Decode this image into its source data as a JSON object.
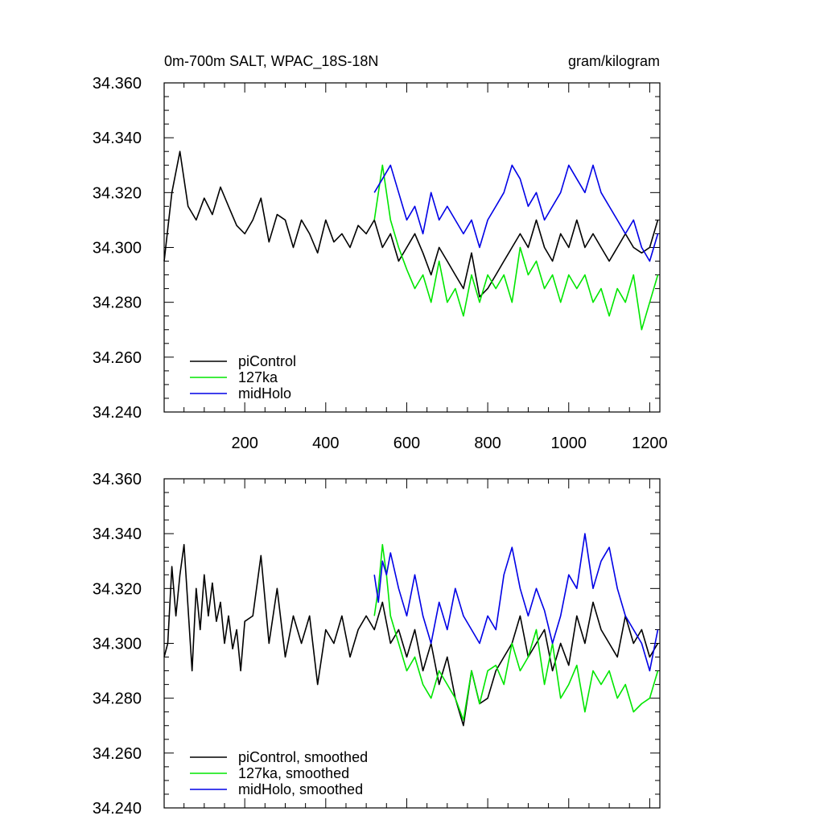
{
  "chart_data": [
    {
      "type": "line",
      "panel": "raw",
      "title_left": "0m-700m SALT, WPAC_18S-18N",
      "title_right": "gram/kilogram",
      "xlim": [
        1,
        1225
      ],
      "ylim": [
        34.24,
        34.36
      ],
      "x_ticks": [
        200,
        400,
        600,
        800,
        1000,
        1200
      ],
      "x_tick_labels": [
        "200",
        "400",
        "600",
        "800",
        "1000",
        "1200"
      ],
      "y_ticks": [
        34.24,
        34.26,
        34.28,
        34.3,
        34.32,
        34.34,
        34.36
      ],
      "y_tick_labels": [
        "34.240",
        "34.260",
        "34.280",
        "34.300",
        "34.320",
        "34.340",
        "34.360"
      ],
      "legend": [
        "piControl",
        "127ka",
        "midHolo"
      ],
      "legend_position": "bottom-left",
      "series": [
        {
          "name": "piControl",
          "color": "#000000",
          "x": [
            1,
            20,
            40,
            60,
            80,
            100,
            120,
            140,
            160,
            180,
            200,
            220,
            240,
            260,
            280,
            300,
            320,
            340,
            360,
            380,
            400,
            420,
            440,
            460,
            480,
            500,
            520,
            540,
            560,
            580,
            600,
            620,
            640,
            660,
            680,
            700,
            720,
            740,
            760,
            780,
            800,
            820,
            840,
            860,
            880,
            900,
            920,
            940,
            960,
            980,
            1000,
            1020,
            1040,
            1060,
            1080,
            1100,
            1120,
            1140,
            1160,
            1180,
            1200,
            1220
          ],
          "values": [
            34.295,
            34.32,
            34.335,
            34.315,
            34.31,
            34.318,
            34.312,
            34.322,
            34.315,
            34.308,
            34.305,
            34.31,
            34.318,
            34.302,
            34.312,
            34.31,
            34.3,
            34.31,
            34.305,
            34.298,
            34.31,
            34.302,
            34.305,
            34.3,
            34.308,
            34.305,
            34.31,
            34.3,
            34.305,
            34.295,
            34.3,
            34.305,
            34.298,
            34.29,
            34.3,
            34.295,
            34.29,
            34.285,
            34.298,
            34.282,
            34.285,
            34.29,
            34.295,
            34.3,
            34.305,
            34.3,
            34.31,
            34.3,
            34.295,
            34.305,
            34.3,
            34.31,
            34.3,
            34.305,
            34.3,
            34.295,
            34.3,
            34.305,
            34.3,
            34.298,
            34.3,
            34.31
          ]
        },
        {
          "name": "127ka",
          "color": "#00e600",
          "x": [
            520,
            540,
            560,
            580,
            600,
            620,
            640,
            660,
            680,
            700,
            720,
            740,
            760,
            780,
            800,
            820,
            840,
            860,
            880,
            900,
            920,
            940,
            960,
            980,
            1000,
            1020,
            1040,
            1060,
            1080,
            1100,
            1120,
            1140,
            1160,
            1180,
            1200,
            1220
          ],
          "values": [
            34.31,
            34.33,
            34.31,
            34.3,
            34.292,
            34.285,
            34.29,
            34.28,
            34.295,
            34.28,
            34.285,
            34.275,
            34.29,
            34.28,
            34.29,
            34.285,
            34.29,
            34.28,
            34.3,
            34.29,
            34.295,
            34.285,
            34.29,
            34.28,
            34.29,
            34.285,
            34.29,
            34.28,
            34.285,
            34.275,
            34.285,
            34.28,
            34.29,
            34.27,
            34.28,
            34.29
          ]
        },
        {
          "name": "midHolo",
          "color": "#0000e6",
          "x": [
            520,
            540,
            560,
            580,
            600,
            620,
            640,
            660,
            680,
            700,
            720,
            740,
            760,
            780,
            800,
            820,
            840,
            860,
            880,
            900,
            920,
            940,
            960,
            980,
            1000,
            1020,
            1040,
            1060,
            1080,
            1100,
            1120,
            1140,
            1160,
            1180,
            1200,
            1220
          ],
          "values": [
            34.32,
            34.325,
            34.33,
            34.32,
            34.31,
            34.315,
            34.305,
            34.32,
            34.31,
            34.315,
            34.31,
            34.305,
            34.31,
            34.3,
            34.31,
            34.315,
            34.32,
            34.33,
            34.325,
            34.315,
            34.32,
            34.31,
            34.315,
            34.32,
            34.33,
            34.325,
            34.32,
            34.33,
            34.32,
            34.315,
            34.31,
            34.305,
            34.31,
            34.3,
            34.295,
            34.305
          ]
        }
      ]
    },
    {
      "type": "line",
      "panel": "smoothed",
      "xlim": [
        1,
        1225
      ],
      "ylim": [
        34.24,
        34.36
      ],
      "y_ticks": [
        34.24,
        34.26,
        34.28,
        34.3,
        34.32,
        34.34,
        34.36
      ],
      "y_tick_labels": [
        "34.240",
        "34.260",
        "34.280",
        "34.300",
        "34.320",
        "34.340",
        "34.360"
      ],
      "legend": [
        "piControl, smoothed",
        "127ka, smoothed",
        "midHolo, smoothed"
      ],
      "legend_position": "bottom-left",
      "series": [
        {
          "name": "piControl, smoothed",
          "color": "#000000",
          "x": [
            1,
            10,
            20,
            30,
            40,
            50,
            60,
            70,
            80,
            90,
            100,
            110,
            120,
            130,
            140,
            150,
            160,
            170,
            180,
            190,
            200,
            220,
            240,
            260,
            280,
            300,
            320,
            340,
            360,
            380,
            400,
            420,
            440,
            460,
            480,
            500,
            520,
            540,
            560,
            580,
            600,
            620,
            640,
            660,
            680,
            700,
            720,
            740,
            760,
            780,
            800,
            820,
            840,
            860,
            880,
            900,
            920,
            940,
            960,
            980,
            1000,
            1020,
            1040,
            1060,
            1080,
            1100,
            1120,
            1140,
            1160,
            1180,
            1200,
            1220
          ],
          "values": [
            34.295,
            34.3,
            34.328,
            34.31,
            34.325,
            34.336,
            34.313,
            34.29,
            34.32,
            34.305,
            34.325,
            34.31,
            34.322,
            34.308,
            34.315,
            34.3,
            34.31,
            34.298,
            34.305,
            34.29,
            34.308,
            34.31,
            34.332,
            34.3,
            34.32,
            34.295,
            34.31,
            34.3,
            34.31,
            34.285,
            34.305,
            34.3,
            34.31,
            34.295,
            34.305,
            34.31,
            34.305,
            34.315,
            34.3,
            34.305,
            34.295,
            34.305,
            34.29,
            34.3,
            34.285,
            34.295,
            34.28,
            34.27,
            34.29,
            34.278,
            34.28,
            34.29,
            34.295,
            34.3,
            34.31,
            34.295,
            34.3,
            34.305,
            34.29,
            34.3,
            34.292,
            34.31,
            34.3,
            34.315,
            34.305,
            34.3,
            34.295,
            34.31,
            34.3,
            34.305,
            34.295,
            34.3
          ]
        },
        {
          "name": "127ka, smoothed",
          "color": "#00e600",
          "x": [
            520,
            530,
            540,
            550,
            560,
            580,
            600,
            620,
            640,
            660,
            680,
            700,
            720,
            740,
            760,
            780,
            800,
            820,
            840,
            860,
            880,
            900,
            920,
            940,
            960,
            980,
            1000,
            1020,
            1040,
            1060,
            1080,
            1100,
            1120,
            1140,
            1160,
            1180,
            1200,
            1220
          ],
          "values": [
            34.31,
            34.32,
            34.336,
            34.325,
            34.31,
            34.3,
            34.29,
            34.295,
            34.285,
            34.28,
            34.29,
            34.285,
            34.28,
            34.272,
            34.29,
            34.278,
            34.29,
            34.292,
            34.285,
            34.3,
            34.29,
            34.295,
            34.305,
            34.285,
            34.3,
            34.28,
            34.285,
            34.292,
            34.275,
            34.29,
            34.285,
            34.29,
            34.28,
            34.285,
            34.275,
            34.278,
            34.28,
            34.29
          ]
        },
        {
          "name": "midHolo, smoothed",
          "color": "#0000e6",
          "x": [
            520,
            530,
            540,
            550,
            560,
            580,
            600,
            620,
            640,
            660,
            680,
            700,
            720,
            740,
            760,
            780,
            800,
            820,
            840,
            860,
            880,
            900,
            920,
            940,
            960,
            980,
            1000,
            1020,
            1040,
            1060,
            1080,
            1100,
            1120,
            1140,
            1160,
            1180,
            1200,
            1220
          ],
          "values": [
            34.325,
            34.315,
            34.33,
            34.325,
            34.333,
            34.32,
            34.31,
            34.325,
            34.31,
            34.3,
            34.315,
            34.305,
            34.32,
            34.31,
            34.305,
            34.3,
            34.31,
            34.305,
            34.325,
            34.335,
            34.32,
            34.31,
            34.32,
            34.312,
            34.3,
            34.31,
            34.325,
            34.32,
            34.34,
            34.32,
            34.33,
            34.335,
            34.32,
            34.31,
            34.305,
            34.3,
            34.29,
            34.305
          ]
        }
      ]
    }
  ]
}
